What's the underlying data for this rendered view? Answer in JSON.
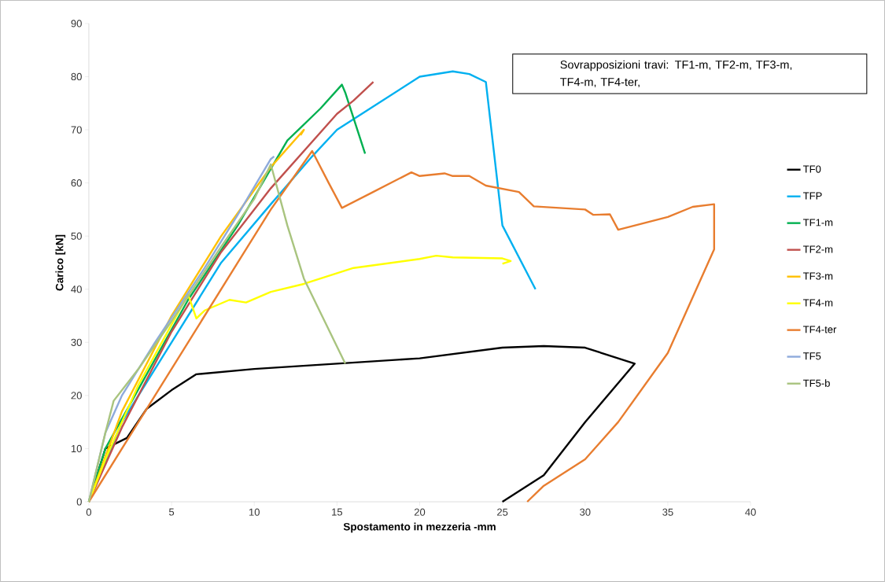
{
  "chart_data": {
    "type": "line",
    "xlabel": "Spostamento in mezzeria -mm",
    "ylabel": "Carico [kN]",
    "annotations": [
      "Sovrapposizioni travi:  TF1-m, TF2-m, TF3-m, TF4-m, TF4-ter,"
    ],
    "xlim": [
      0,
      40
    ],
    "ylim": [
      0,
      90
    ],
    "xticks": [
      0,
      5,
      10,
      15,
      20,
      25,
      30,
      35,
      40
    ],
    "yticks": [
      0,
      10,
      20,
      30,
      40,
      50,
      60,
      70,
      80,
      90
    ],
    "grid": false,
    "legend": "right",
    "marker": "none",
    "line_style": "solid",
    "series": [
      {
        "name": "TF0",
        "color": "#000000",
        "x": [
          0,
          1,
          2.3,
          3.5,
          5,
          6.5,
          10,
          15,
          20,
          25,
          27.5,
          30,
          33,
          30,
          27.5,
          25
        ],
        "values": [
          0,
          10,
          12,
          17.5,
          21,
          24,
          25,
          26,
          27,
          29,
          29.3,
          29,
          26,
          15,
          5,
          0
        ]
      },
      {
        "name": "TFP",
        "color": "#00b0f0",
        "x": [
          0,
          2,
          5,
          8,
          11,
          13.5,
          15,
          17,
          20,
          22,
          23,
          24,
          25,
          27
        ],
        "values": [
          0,
          15,
          30,
          45,
          56,
          65,
          70,
          74,
          80,
          81,
          80.5,
          79,
          52,
          40
        ]
      },
      {
        "name": "TF1-m",
        "color": "#00b050",
        "x": [
          0,
          1,
          6,
          9,
          12,
          14,
          15.3,
          15.5,
          16.7
        ],
        "values": [
          0,
          10,
          38,
          52,
          68,
          74,
          78.5,
          77,
          65.5
        ]
      },
      {
        "name": "TF2-m",
        "color": "#c0504d",
        "x": [
          0,
          2,
          5,
          8,
          11,
          13,
          15,
          16,
          17.2
        ],
        "values": [
          0,
          14,
          32,
          47,
          59,
          66,
          73,
          75.5,
          79
        ]
      },
      {
        "name": "TF3-m",
        "color": "#ffc000",
        "x": [
          0,
          2,
          5,
          8,
          11,
          13,
          12.8
        ],
        "values": [
          0,
          17,
          35,
          50,
          63,
          70,
          69
        ]
      },
      {
        "name": "TF4-m",
        "color": "#ffff00",
        "x": [
          0,
          1,
          3,
          6,
          6.5,
          7,
          8.5,
          9.5,
          11,
          13,
          15,
          16,
          20,
          21,
          22,
          25,
          25.5,
          25
        ],
        "values": [
          0,
          8,
          22,
          39,
          34.5,
          36,
          38,
          37.5,
          39.5,
          41,
          43,
          44,
          45.7,
          46.3,
          46,
          45.8,
          45.3,
          44.8
        ]
      },
      {
        "name": "TF4-ter",
        "color": "#e87d2f",
        "x": [
          0,
          3,
          6,
          9,
          11,
          13.5,
          14.5,
          15.3,
          17,
          19.5,
          20,
          21.5,
          22,
          23,
          24,
          26,
          26.9,
          30,
          30.5,
          31.5,
          32,
          35,
          36.5,
          37.8,
          37.8,
          35,
          32,
          30,
          27.5,
          26.5
        ],
        "values": [
          0,
          15,
          30,
          45,
          55,
          66,
          60,
          55.3,
          58,
          62,
          61.3,
          61.8,
          61.3,
          61.3,
          59.5,
          58.3,
          55.6,
          55,
          54,
          54.1,
          51.2,
          53.6,
          55.5,
          56,
          47.5,
          28,
          15,
          8,
          3,
          0
        ]
      },
      {
        "name": "TF5",
        "color": "#8eaadb",
        "x": [
          0,
          1,
          2,
          4,
          7,
          9,
          11,
          11.2
        ],
        "values": [
          0,
          13,
          20,
          30,
          44,
          54,
          64.5,
          65
        ]
      },
      {
        "name": "TF5-b",
        "color": "#a9c47f",
        "x": [
          0,
          1,
          1.5,
          3,
          5,
          8,
          10,
          11,
          12,
          13,
          15.5
        ],
        "values": [
          0,
          13,
          19,
          25,
          34,
          48,
          57,
          63.5,
          52,
          42,
          26
        ]
      }
    ]
  }
}
